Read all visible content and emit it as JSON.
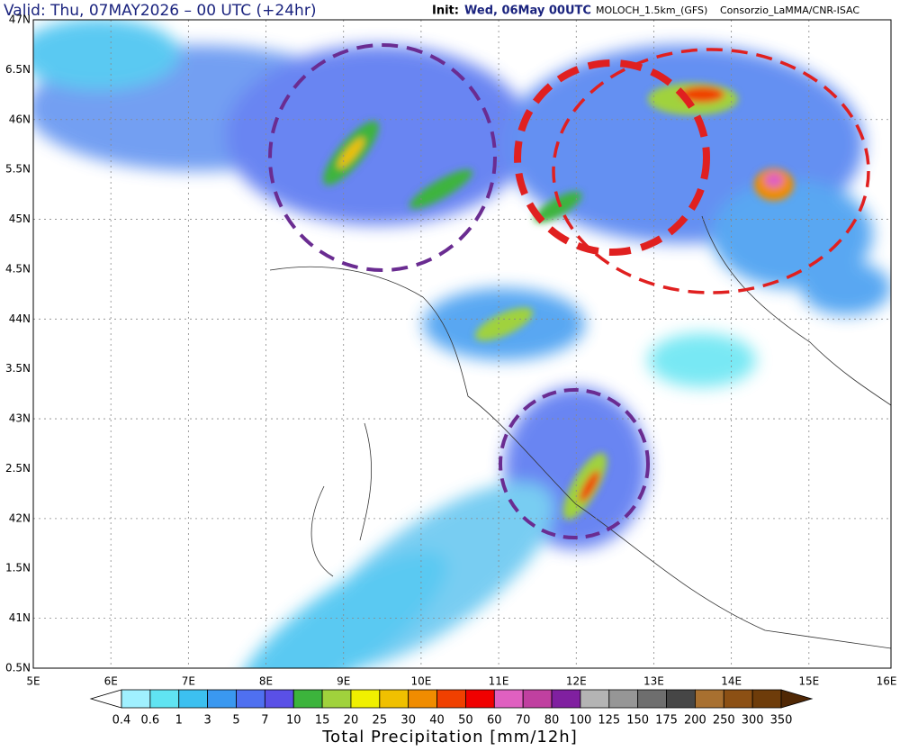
{
  "header": {
    "valid": "Valid: Thu, 07MAY2026 – 00 UTC (+24hr)",
    "init_label": "Init:",
    "init": "Wed, 06May 00UTC",
    "model": "MOLOCH_1.5km_(GFS)",
    "credit": "Consorzio_LaMMA/CNR-ISAC"
  },
  "map": {
    "lat_labels": [
      "47N",
      "6.5N",
      "46N",
      "5.5N",
      "45N",
      "4.5N",
      "44N",
      "3.5N",
      "43N",
      "2.5N",
      "42N",
      "1.5N",
      "41N",
      "0.5N"
    ],
    "lon_labels": [
      "5E",
      "6E",
      "7E",
      "8E",
      "9E",
      "10E",
      "11E",
      "12E",
      "13E",
      "14E",
      "15E",
      "16E"
    ]
  },
  "colorbar": {
    "levels": [
      0.4,
      0.6,
      1,
      3,
      5,
      7,
      10,
      15,
      20,
      25,
      30,
      40,
      50,
      60,
      70,
      80,
      100,
      125,
      150,
      175,
      200,
      250,
      300,
      350
    ],
    "colors": [
      "#ffffff",
      "#a0f0ff",
      "#60e4f2",
      "#3cc0f0",
      "#3a98f0",
      "#4f70f0",
      "#5a50e6",
      "#3cb43c",
      "#a0d23c",
      "#f0f000",
      "#f0c000",
      "#f08c00",
      "#f04000",
      "#f00000",
      "#e060c0",
      "#c040a0",
      "#8020a0",
      "#b4b4b4",
      "#969696",
      "#6e6e6e",
      "#464646",
      "#a87030",
      "#8c5014",
      "#6e3c0a",
      "#502805"
    ],
    "title": "Total Precipitation [mm/12h]"
  }
}
